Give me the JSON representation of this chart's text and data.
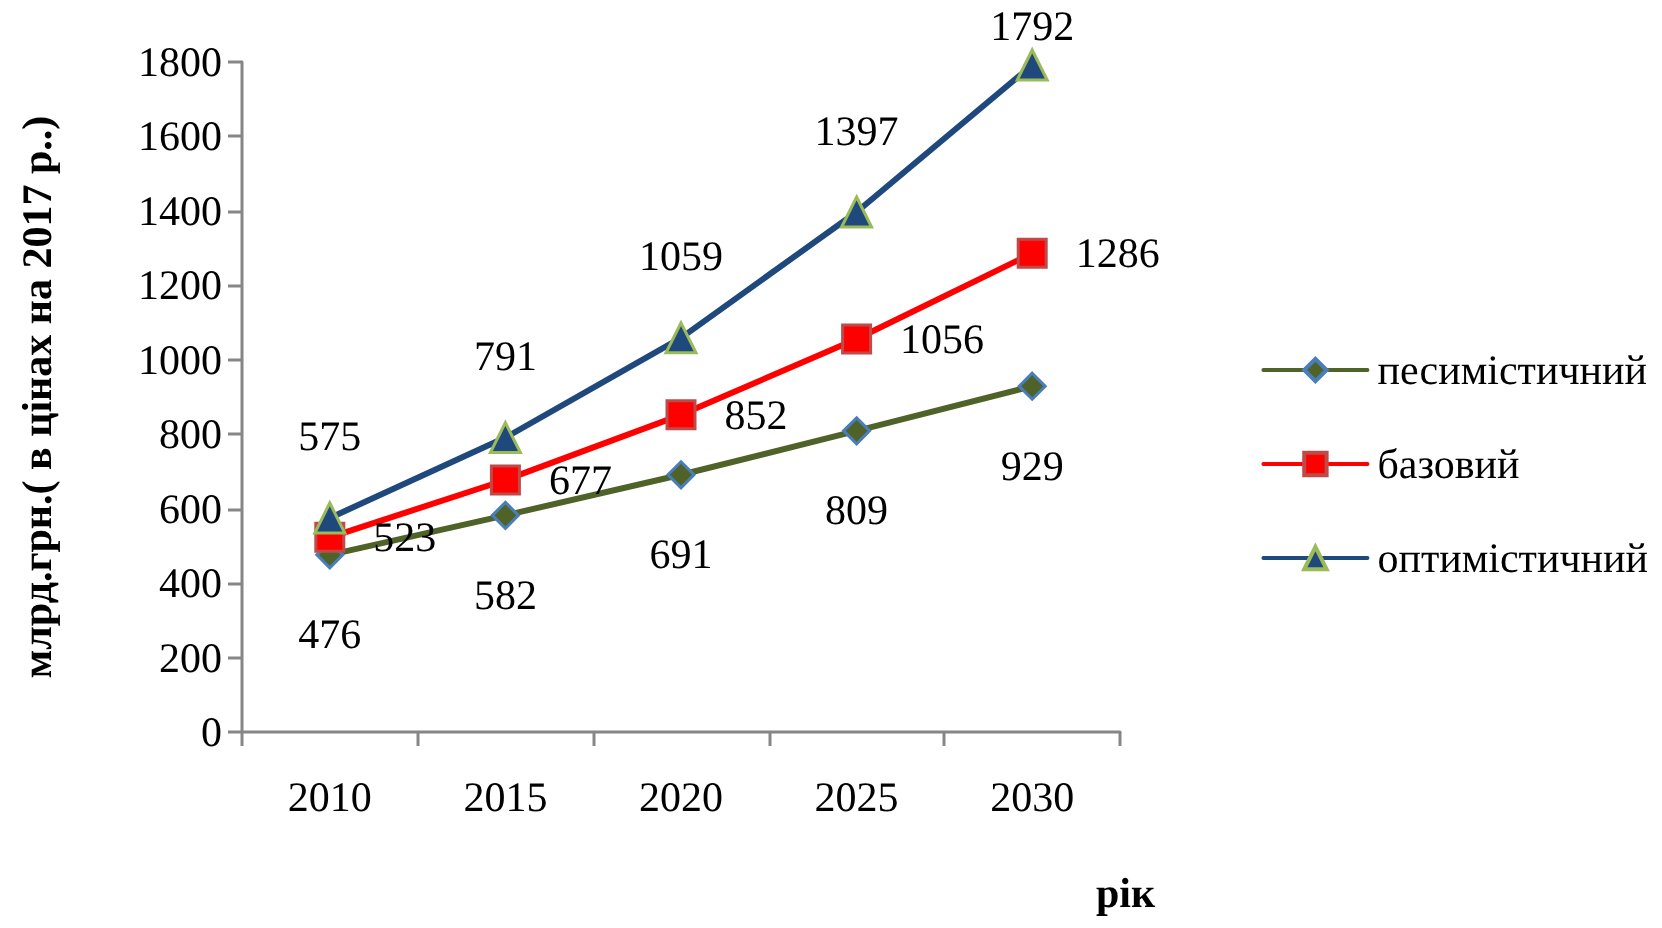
{
  "chart_data": {
    "type": "line",
    "ylabel": "млрд.грн.( в цінах на 2017 р..)",
    "xlabel": "рік",
    "categories": [
      "2010",
      "2015",
      "2020",
      "2025",
      "2030"
    ],
    "series": [
      {
        "name": "песимістичний",
        "color": "#4f6228",
        "marker": "diamond",
        "values": [
          476,
          582,
          691,
          809,
          929
        ]
      },
      {
        "name": "базовий",
        "color": "#ff0000",
        "marker": "square",
        "values": [
          523,
          677,
          852,
          1056,
          1286
        ]
      },
      {
        "name": "оптимістичний",
        "color": "#1f497d",
        "marker": "triangle",
        "values": [
          575,
          791,
          1059,
          1397,
          1792
        ]
      }
    ],
    "ylim": [
      0,
      1800
    ],
    "yticks": [
      0,
      200,
      400,
      600,
      800,
      1000,
      1200,
      1400,
      1600,
      1800
    ],
    "grid": false,
    "legend": "right",
    "data_labels": true,
    "line_style": "solid"
  }
}
